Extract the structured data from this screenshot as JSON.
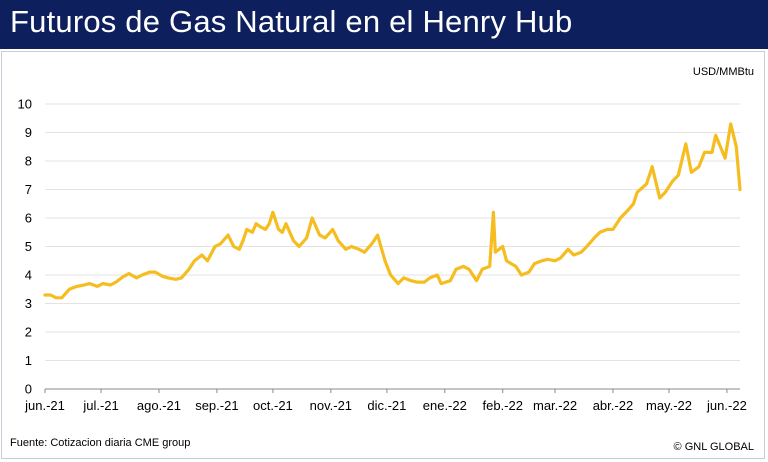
{
  "header": {
    "title": "Futuros de Gas Natural en el Henry Hub"
  },
  "footer": {
    "source": "Fuente: Cotizacion diaria CME group",
    "credit": "© GNL GLOBAL"
  },
  "colors": {
    "header_bg": "#0d1f5c",
    "line": "#f5bd1f",
    "grid": "#e3e3e3"
  },
  "chart_data": {
    "type": "line",
    "title": "Futuros de Gas Natural en el Henry Hub",
    "unit_label": "USD/MMBtu",
    "xlabel": "",
    "ylabel": "",
    "ylim": [
      0,
      10
    ],
    "yticks": [
      0,
      1,
      2,
      3,
      4,
      5,
      6,
      7,
      8,
      9,
      10
    ],
    "xticks": [
      "jun.-21",
      "jul.-21",
      "ago.-21",
      "sep.-21",
      "oct.-21",
      "nov.-21",
      "dic.-21",
      "ene.-22",
      "feb.-22",
      "mar.-22",
      "abr.-22",
      "may.-22",
      "jun.-22"
    ],
    "grid": true,
    "legend": "none",
    "x_start": "2021-06-01",
    "x_end": "2022-06-08",
    "series": [
      {
        "name": "",
        "x": [
          "2021-06-01",
          "2021-06-04",
          "2021-06-07",
          "2021-06-10",
          "2021-06-14",
          "2021-06-18",
          "2021-06-22",
          "2021-06-25",
          "2021-06-29",
          "2021-07-02",
          "2021-07-06",
          "2021-07-09",
          "2021-07-13",
          "2021-07-16",
          "2021-07-20",
          "2021-07-23",
          "2021-07-27",
          "2021-07-30",
          "2021-08-03",
          "2021-08-06",
          "2021-08-10",
          "2021-08-13",
          "2021-08-17",
          "2021-08-20",
          "2021-08-24",
          "2021-08-27",
          "2021-08-31",
          "2021-09-03",
          "2021-09-07",
          "2021-09-10",
          "2021-09-13",
          "2021-09-15",
          "2021-09-17",
          "2021-09-20",
          "2021-09-22",
          "2021-09-24",
          "2021-09-27",
          "2021-09-29",
          "2021-10-01",
          "2021-10-04",
          "2021-10-06",
          "2021-10-08",
          "2021-10-12",
          "2021-10-15",
          "2021-10-19",
          "2021-10-22",
          "2021-10-26",
          "2021-10-29",
          "2021-11-02",
          "2021-11-05",
          "2021-11-09",
          "2021-11-12",
          "2021-11-16",
          "2021-11-19",
          "2021-11-23",
          "2021-11-26",
          "2021-11-30",
          "2021-12-03",
          "2021-12-07",
          "2021-12-10",
          "2021-12-14",
          "2021-12-17",
          "2021-12-21",
          "2021-12-24",
          "2021-12-28",
          "2021-12-30",
          "2022-01-04",
          "2022-01-07",
          "2022-01-11",
          "2022-01-14",
          "2022-01-18",
          "2022-01-21",
          "2022-01-25",
          "2022-01-27",
          "2022-01-28",
          "2022-02-01",
          "2022-02-03",
          "2022-02-08",
          "2022-02-11",
          "2022-02-15",
          "2022-02-18",
          "2022-02-22",
          "2022-02-25",
          "2022-03-01",
          "2022-03-04",
          "2022-03-08",
          "2022-03-11",
          "2022-03-15",
          "2022-03-18",
          "2022-03-22",
          "2022-03-25",
          "2022-03-29",
          "2022-04-01",
          "2022-04-05",
          "2022-04-08",
          "2022-04-12",
          "2022-04-14",
          "2022-04-19",
          "2022-04-22",
          "2022-04-26",
          "2022-04-29",
          "2022-05-03",
          "2022-05-06",
          "2022-05-10",
          "2022-05-13",
          "2022-05-17",
          "2022-05-20",
          "2022-05-24",
          "2022-05-26",
          "2022-05-31",
          "2022-06-03",
          "2022-06-06",
          "2022-06-08"
        ],
        "values": [
          3.3,
          3.3,
          3.2,
          3.2,
          3.5,
          3.6,
          3.65,
          3.7,
          3.6,
          3.7,
          3.65,
          3.75,
          3.95,
          4.05,
          3.9,
          4.0,
          4.1,
          4.1,
          3.95,
          3.9,
          3.85,
          3.9,
          4.2,
          4.5,
          4.7,
          4.5,
          5.0,
          5.1,
          5.4,
          5.0,
          4.9,
          5.2,
          5.6,
          5.5,
          5.8,
          5.7,
          5.6,
          5.8,
          6.2,
          5.6,
          5.5,
          5.8,
          5.2,
          5.0,
          5.3,
          6.0,
          5.4,
          5.3,
          5.6,
          5.2,
          4.9,
          5.0,
          4.9,
          4.8,
          5.1,
          5.4,
          4.5,
          4.0,
          3.7,
          3.9,
          3.8,
          3.75,
          3.75,
          3.9,
          4.0,
          3.7,
          3.8,
          4.2,
          4.3,
          4.2,
          3.8,
          4.2,
          4.3,
          6.2,
          4.8,
          5.0,
          4.5,
          4.3,
          4.0,
          4.1,
          4.4,
          4.5,
          4.55,
          4.5,
          4.6,
          4.9,
          4.7,
          4.8,
          5.0,
          5.3,
          5.5,
          5.6,
          5.6,
          6.0,
          6.2,
          6.5,
          6.9,
          7.2,
          7.8,
          6.7,
          6.9,
          7.3,
          7.5,
          8.6,
          7.6,
          7.8,
          8.3,
          8.3,
          8.9,
          8.1,
          9.3,
          8.5,
          7.0
        ]
      }
    ]
  }
}
